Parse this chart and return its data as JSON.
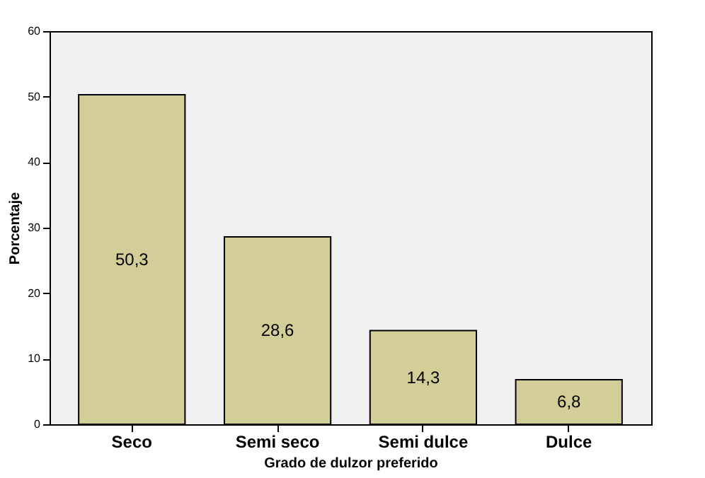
{
  "chart_data": {
    "type": "bar",
    "xlabel": "Grado de dulzor preferido",
    "ylabel": "Porcentaje",
    "categories": [
      "Seco",
      "Semi seco",
      "Semi dulce",
      "Dulce"
    ],
    "values": [
      50.3,
      28.6,
      14.3,
      6.8
    ],
    "value_labels": [
      "50,3",
      "28,6",
      "14,3",
      "6,8"
    ],
    "color": "#d3ce97",
    "ylim": [
      0,
      60
    ],
    "yticks": [
      0,
      10,
      20,
      30,
      40,
      50,
      60
    ],
    "grid": false
  }
}
